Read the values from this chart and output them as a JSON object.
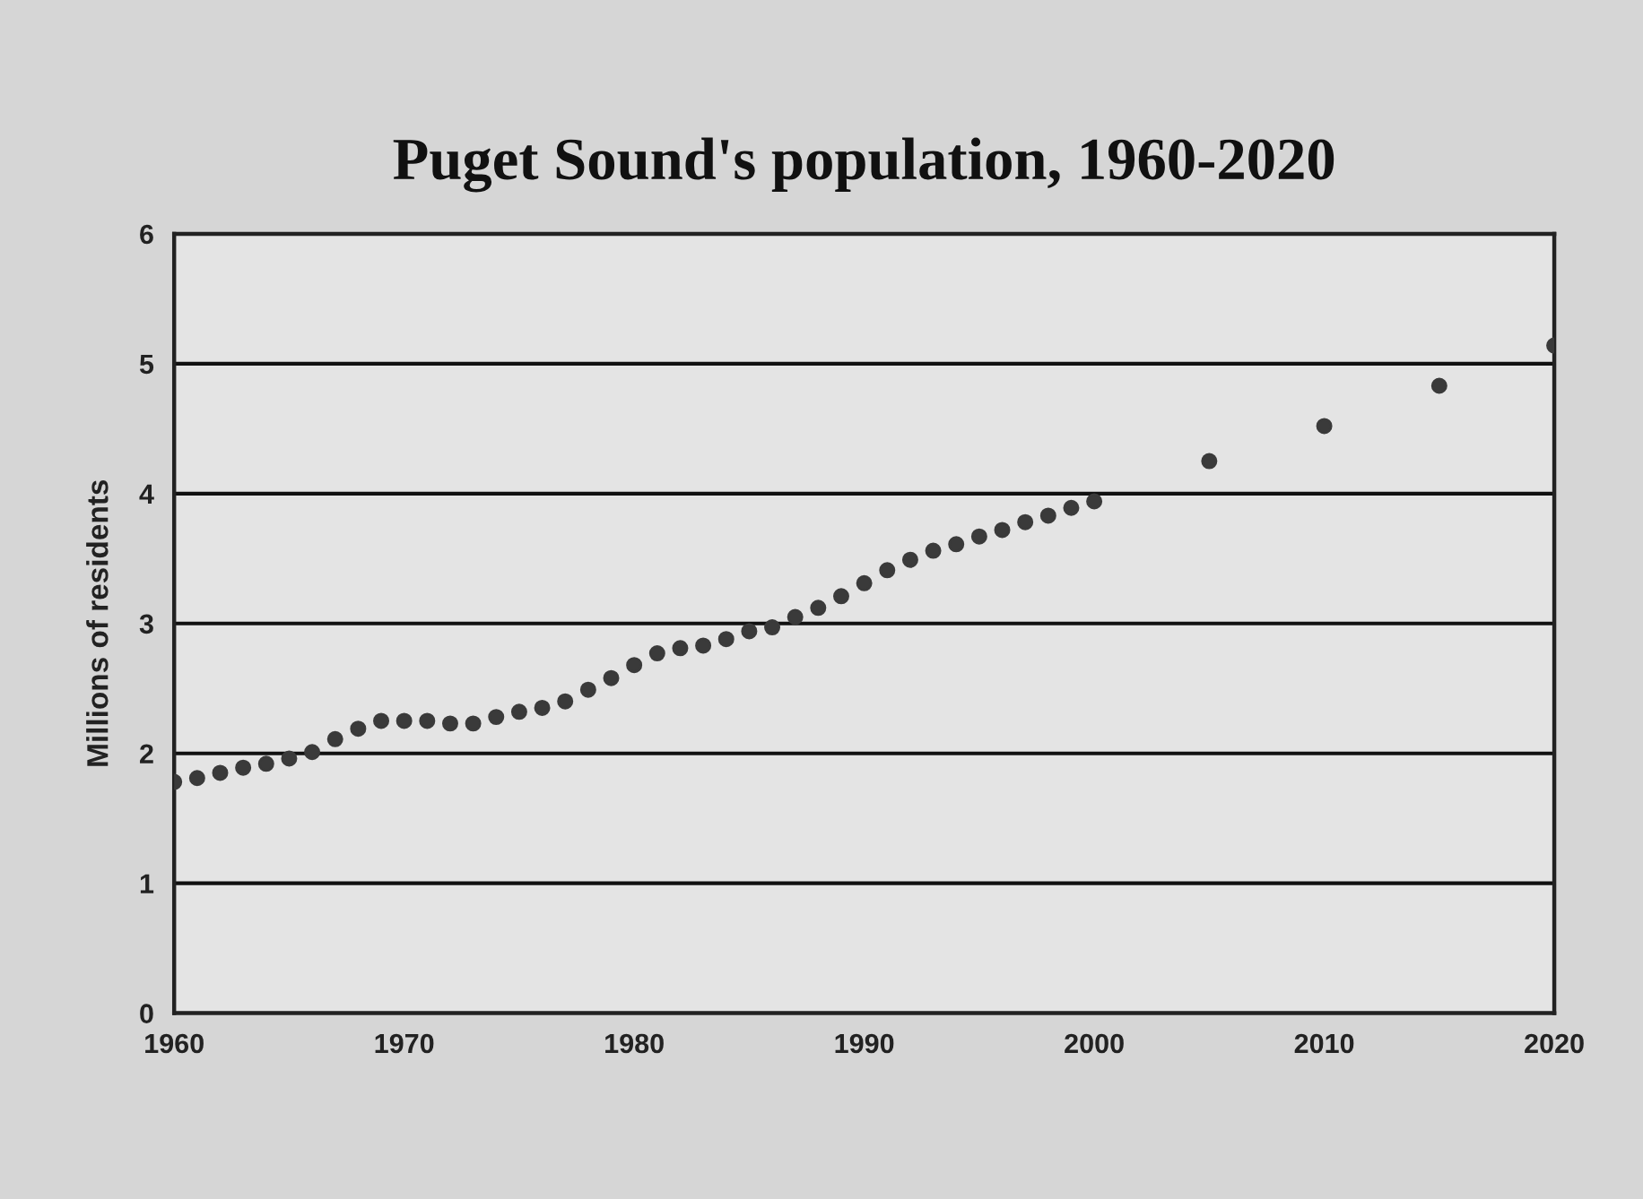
{
  "chart_data": {
    "type": "scatter",
    "title": "Puget Sound's population, 1960-2020",
    "ylabel": "Millions of residents",
    "x": [
      1960,
      1961,
      1962,
      1963,
      1964,
      1965,
      1966,
      1967,
      1968,
      1969,
      1970,
      1971,
      1972,
      1973,
      1974,
      1975,
      1976,
      1977,
      1978,
      1979,
      1980,
      1981,
      1982,
      1983,
      1984,
      1985,
      1986,
      1987,
      1988,
      1989,
      1990,
      1991,
      1992,
      1993,
      1994,
      1995,
      1996,
      1997,
      1998,
      1999,
      2000,
      2005,
      2010,
      2015,
      2020
    ],
    "series": [
      {
        "color": "#3a3a3a",
        "values": [
          1.78,
          1.81,
          1.85,
          1.89,
          1.92,
          1.96,
          2.01,
          2.11,
          2.19,
          2.25,
          2.25,
          2.25,
          2.23,
          2.23,
          2.28,
          2.32,
          2.35,
          2.4,
          2.49,
          2.58,
          2.68,
          2.77,
          2.81,
          2.83,
          2.88,
          2.94,
          2.97,
          3.05,
          3.12,
          3.21,
          3.31,
          3.41,
          3.49,
          3.56,
          3.61,
          3.67,
          3.72,
          3.78,
          3.83,
          3.89,
          3.94,
          4.25,
          4.52,
          4.83,
          5.14
        ]
      }
    ],
    "xlim": [
      1960,
      2020
    ],
    "xticks": [
      1960,
      1970,
      1980,
      1990,
      2000,
      2010,
      2020
    ],
    "ylim": [
      0,
      6
    ],
    "yticks": [
      0,
      1,
      2,
      3,
      4,
      5,
      6
    ],
    "grid": "y",
    "marker": "circle",
    "legend": false
  }
}
